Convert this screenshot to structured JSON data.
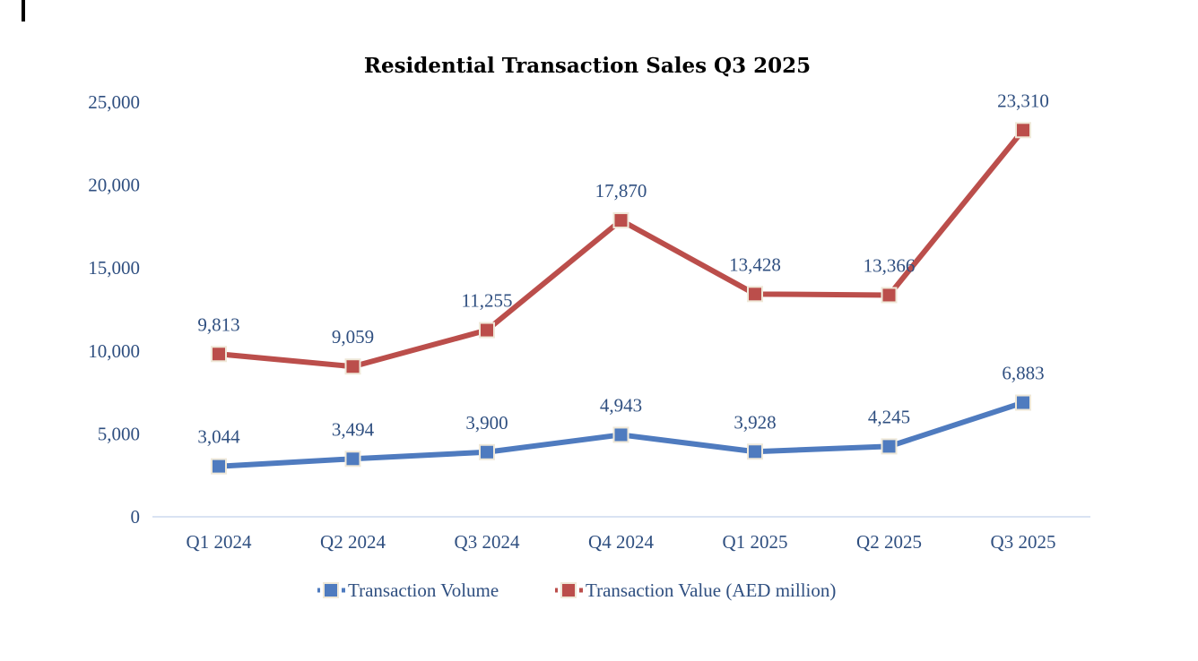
{
  "chart_data": {
    "type": "line",
    "title": "Residential Transaction  Sales Q3 2025",
    "xlabel": "",
    "ylabel": "",
    "categories": [
      "Q1 2024",
      "Q2 2024",
      "Q3 2024",
      "Q4 2024",
      "Q1 2025",
      "Q2 2025",
      "Q3 2025"
    ],
    "ylim": [
      0,
      25000
    ],
    "yticks": [
      0,
      5000,
      10000,
      15000,
      20000,
      25000
    ],
    "ytick_labels": [
      "0",
      "5,000",
      "10,000",
      "15,000",
      "20,000",
      "25,000"
    ],
    "grid": false,
    "legend_position": "bottom",
    "series": [
      {
        "name": "Transaction Volume",
        "color": "#4f7bbf",
        "marker": "square",
        "values": [
          3044,
          3494,
          3900,
          4943,
          3928,
          4245,
          6883
        ],
        "labels": [
          "3,044",
          "3,494",
          "3,900",
          "4,943",
          "3,928",
          "4,245",
          "6,883"
        ]
      },
      {
        "name": "Transaction Value (AED million)",
        "color": "#bb4e4b",
        "marker": "square",
        "values": [
          9813,
          9059,
          11255,
          17870,
          13428,
          13366,
          23310
        ],
        "labels": [
          "9,813",
          "9,059",
          "11,255",
          "17,870",
          "13,428",
          "13,366",
          "23,310"
        ]
      }
    ],
    "colors": {
      "label_text": "#2f4f80",
      "axis_line": "#d9e3f3",
      "marker_border": "#efe8d8"
    }
  }
}
